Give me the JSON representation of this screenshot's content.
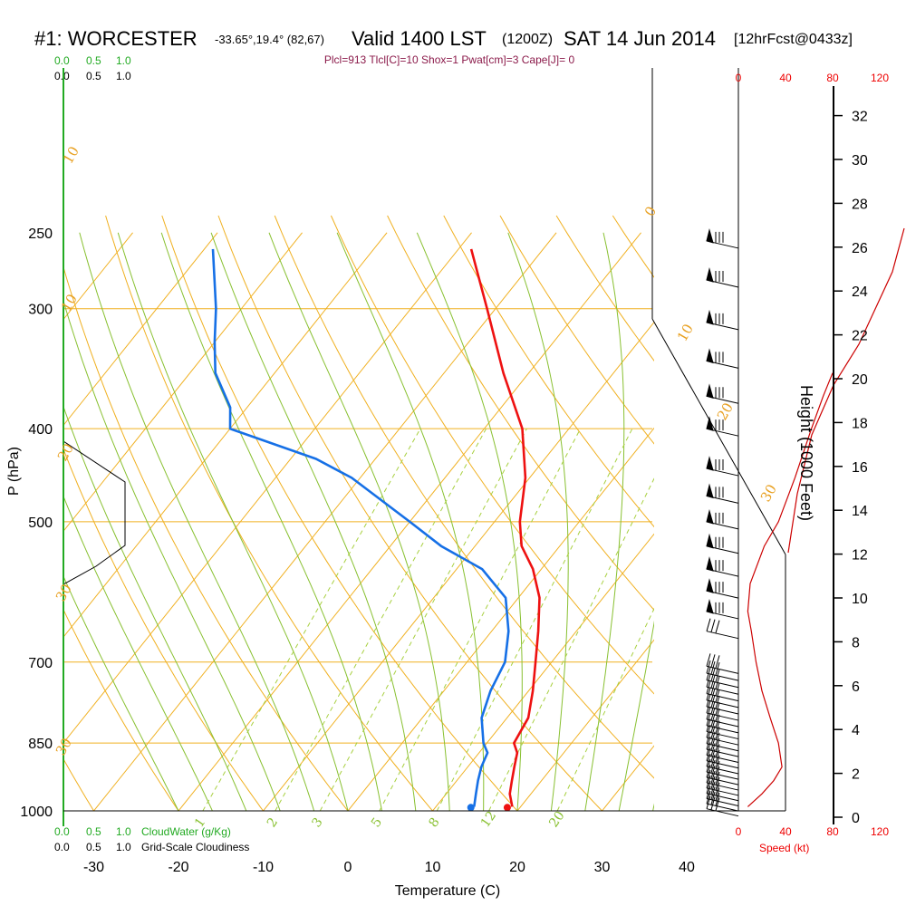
{
  "header": {
    "station": "#1: WORCESTER",
    "coords": "-33.65°,19.4° (82,67)",
    "valid": "Valid 1400 LST",
    "zulu": "(1200Z)",
    "date": "SAT 14 Jun 2014",
    "forecast": "[12hrFcst@0433z]",
    "indices": "Plcl=913 Tlcl[C]=10 Shox=1 Pwat[cm]=3 Cape[J]= 0"
  },
  "legend": {
    "top_green": [
      "0.0",
      "0.5",
      "1.0"
    ],
    "top_black": [
      "0.0",
      "0.5",
      "1.0"
    ],
    "bottom_green": [
      "0.0",
      "0.5",
      "1.0"
    ],
    "bottom_black": [
      "0.0",
      "0.5",
      "1.0"
    ],
    "cloud_water": "CloudWater (g/Kg)",
    "cloudiness": "Grid-Scale Cloudiness"
  },
  "axes": {
    "xlabel": "Temperature (C)",
    "ylabel": "P (hPa)",
    "height_label": "Height (1000 Feet)",
    "speed_label": "Speed (kt)"
  },
  "colors": {
    "temperature": "#ee1111",
    "dewpoint": "#1670e6",
    "isotherm": "#f0b020",
    "dry_adiabat": "#f0b020",
    "moist_adiabat": "#88c030",
    "mixing_ratio": "#a8d040",
    "wind_speed": "#cc0000",
    "speed_axis": "#ee0000",
    "cloud_axis": "#22aa22"
  },
  "chart_data": {
    "type": "line",
    "skew": "skew-T log-p",
    "pressure_ticks": [
      250,
      300,
      400,
      500,
      700,
      850,
      1000
    ],
    "temperature_ticks": [
      -30,
      -20,
      -10,
      0,
      10,
      20,
      30,
      40
    ],
    "xlim": [
      -34,
      46
    ],
    "ylim": [
      1000,
      250
    ],
    "grid": true,
    "dry_adiabat_labels": [
      "10",
      "0",
      "10",
      "20",
      "30",
      "10",
      "20",
      "30"
    ],
    "mixing_ratio_labels": [
      "1",
      "2",
      "3",
      "5",
      "8",
      "12",
      "20"
    ],
    "height_ticks": [
      0,
      2,
      4,
      6,
      8,
      10,
      12,
      14,
      16,
      18,
      20,
      22,
      24,
      26,
      28,
      30,
      32
    ],
    "speed_ticks": [
      "0",
      "40",
      "80",
      "120"
    ],
    "series": [
      {
        "name": "Temperature",
        "points": [
          [
            19,
            990
          ],
          [
            17.5,
            960
          ],
          [
            16.5,
            930
          ],
          [
            15.5,
            900
          ],
          [
            14.5,
            870
          ],
          [
            13.2,
            850
          ],
          [
            12.5,
            800
          ],
          [
            10.5,
            750
          ],
          [
            8.6,
            710
          ],
          [
            5.5,
            650
          ],
          [
            2.5,
            600
          ],
          [
            -1.0,
            560
          ],
          [
            -4.5,
            530
          ],
          [
            -7.0,
            500
          ],
          [
            -10.5,
            450
          ],
          [
            -15.5,
            400
          ],
          [
            -23,
            350
          ],
          [
            -31,
            300
          ],
          [
            -38.5,
            260
          ]
        ]
      },
      {
        "name": "Dewpoint",
        "points": [
          [
            14.5,
            990
          ],
          [
            13.5,
            960
          ],
          [
            12.5,
            930
          ],
          [
            11.6,
            900
          ],
          [
            11,
            870
          ],
          [
            9.6,
            850
          ],
          [
            7,
            800
          ],
          [
            5.5,
            750
          ],
          [
            4.5,
            700
          ],
          [
            2,
            650
          ],
          [
            -1.5,
            600
          ],
          [
            -7,
            560
          ],
          [
            -14,
            530
          ],
          [
            -20,
            500
          ],
          [
            -31,
            450
          ],
          [
            -37,
            430
          ],
          [
            -50,
            400
          ],
          [
            -52,
            380
          ],
          [
            -57,
            350
          ],
          [
            -60,
            325
          ],
          [
            -63,
            300
          ],
          [
            -69,
            260
          ]
        ]
      }
    ],
    "surface_points": {
      "temperature": 18.5,
      "dewpoint": 14.2
    },
    "wind_speed_profile": [
      [
        8,
        990
      ],
      [
        20,
        960
      ],
      [
        30,
        930
      ],
      [
        37,
        900
      ],
      [
        34,
        850
      ],
      [
        27,
        800
      ],
      [
        20,
        750
      ],
      [
        15,
        700
      ],
      [
        11,
        650
      ],
      [
        8,
        620
      ],
      [
        10,
        580
      ],
      [
        22,
        530
      ],
      [
        34,
        500
      ],
      [
        48,
        450
      ],
      [
        62,
        400
      ],
      [
        72,
        370
      ],
      [
        80,
        350
      ]
    ]
  }
}
